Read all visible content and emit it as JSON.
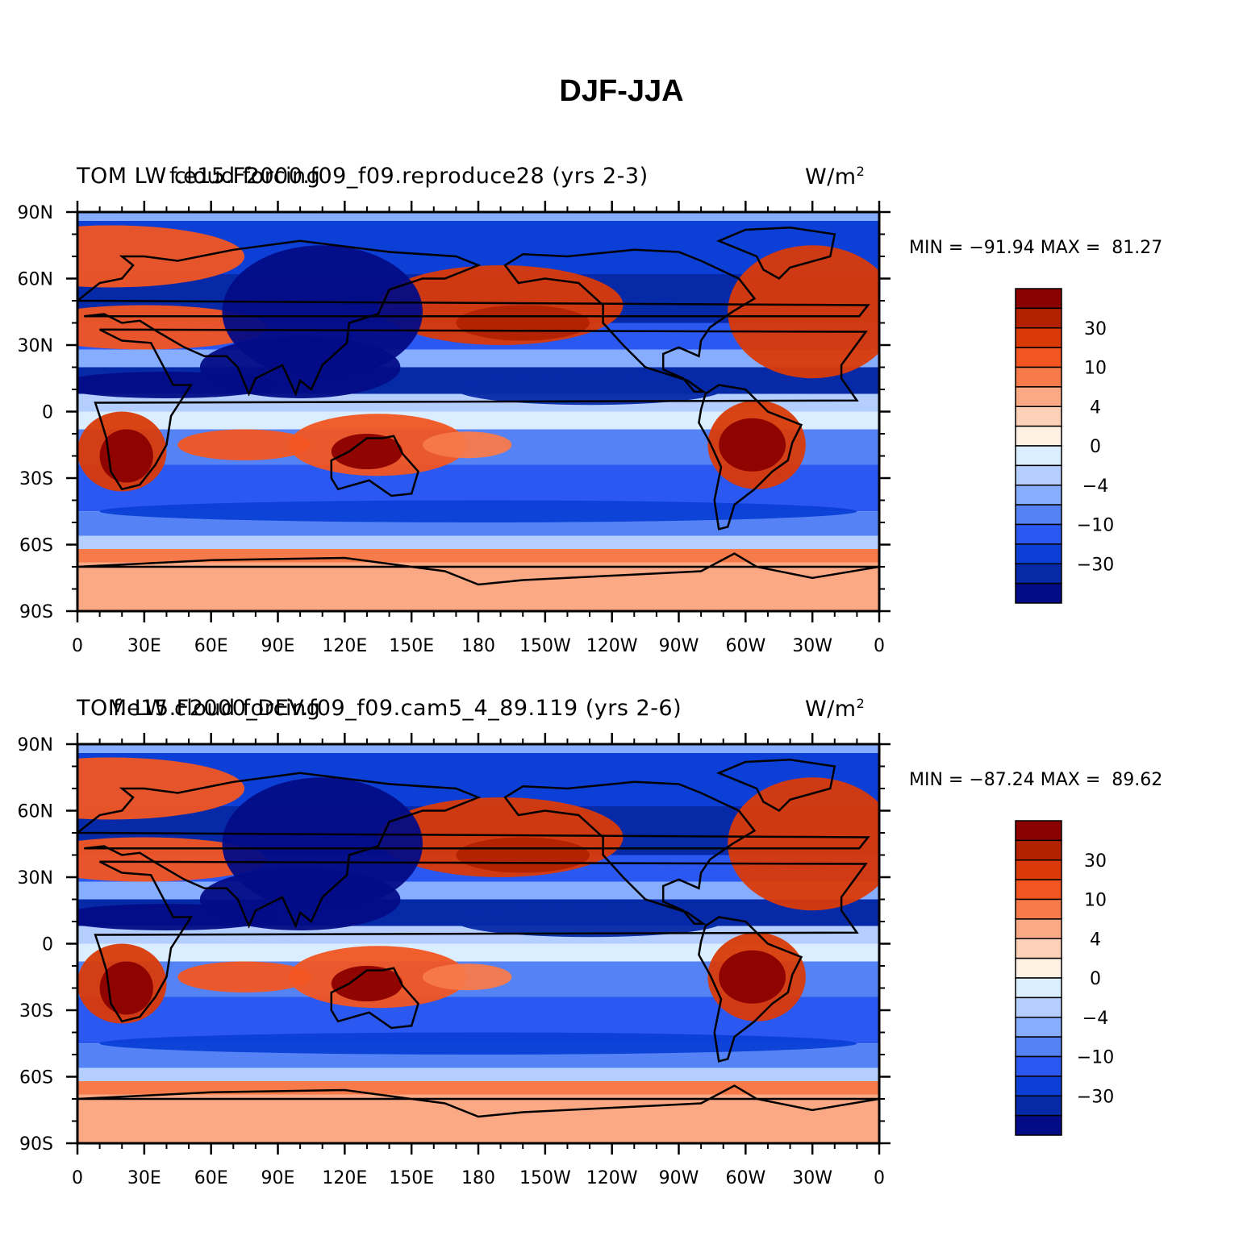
{
  "title": "DJF-JJA",
  "panels": [
    {
      "left_label": "TOM LW cloud forcing",
      "center_label": "f.e15.F2000.f09_f09.reproduce28 (yrs 2-3)",
      "units": "W/m",
      "units_sup": "2",
      "stats": "MIN = −91.94 MAX =  81.27"
    },
    {
      "left_label": "TOM LW cloud forcing",
      "center_label": "f.e15.F2000_DEV.f09_f09.cam5_4_89.119 (yrs 2-6)",
      "units": "W/m",
      "units_sup": "2",
      "stats": "MIN = −87.24 MAX =  89.62"
    }
  ],
  "axes": {
    "y_ticks": [
      "90N",
      "60N",
      "30N",
      "0",
      "30S",
      "60S",
      "90S"
    ],
    "x_ticks": [
      "0",
      "30E",
      "60E",
      "90E",
      "120E",
      "150E",
      "180",
      "150W",
      "120W",
      "90W",
      "60W",
      "30W",
      "0"
    ]
  },
  "colorbar": {
    "colors": [
      "#8b0000",
      "#b22200",
      "#d93a08",
      "#f25522",
      "#f77a4a",
      "#fba885",
      "#fdd0b8",
      "#fff0e4",
      "#dbeeff",
      "#b4cfff",
      "#87adff",
      "#5583f5",
      "#2b58f0",
      "#0b3fd6",
      "#0629a8",
      "#030c86"
    ],
    "labels": [
      "30",
      "10",
      "4",
      "0",
      "−4",
      "−10",
      "−30"
    ]
  },
  "chart_data": {
    "type": "heatmap",
    "title": "DJF-JJA",
    "variable": "TOM LW cloud forcing",
    "units": "W/m2",
    "x_ticks": [
      "0",
      "30E",
      "60E",
      "90E",
      "120E",
      "150E",
      "180",
      "150W",
      "120W",
      "90W",
      "60W",
      "30W",
      "0"
    ],
    "y_ticks": [
      "90N",
      "60N",
      "30N",
      "0",
      "30S",
      "60S",
      "90S"
    ],
    "xlim": [
      0,
      360
    ],
    "ylim": [
      -90,
      90
    ],
    "colorbar_labels": [
      "30",
      "10",
      "4",
      "0",
      "-4",
      "-10",
      "-30"
    ],
    "series": [
      {
        "name": "f.e15.F2000.f09_f09.reproduce28 (yrs 2-3)",
        "min": -91.94,
        "max": 81.27
      },
      {
        "name": "f.e15.F2000_DEV.f09_f09.cam5_4_89.119 (yrs 2-6)",
        "min": -87.24,
        "max": 89.62
      }
    ]
  }
}
